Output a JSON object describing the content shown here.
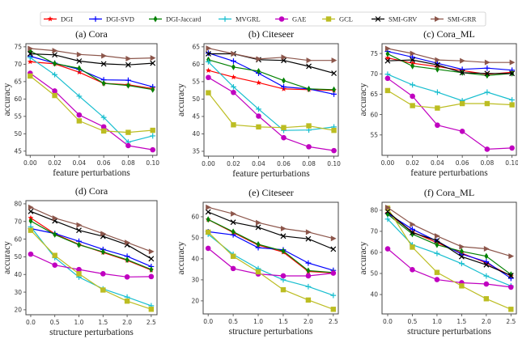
{
  "legend": {
    "placement": "top-center",
    "entries": [
      {
        "name": "DGI",
        "color": "#ff0000",
        "marker": "star"
      },
      {
        "name": "DGI-SVD",
        "color": "#0000ff",
        "marker": "plus"
      },
      {
        "name": "DGI-Jaccard",
        "color": "#008000",
        "marker": "thin-diamond"
      },
      {
        "name": "MVGRL",
        "color": "#17becf",
        "marker": "plus"
      },
      {
        "name": "GAE",
        "color": "#c000c0",
        "marker": "circle"
      },
      {
        "name": "GCL",
        "color": "#bcbd22",
        "marker": "square"
      },
      {
        "name": "SMI-GRV",
        "color": "#000000",
        "marker": "x"
      },
      {
        "name": "SMI-GRR",
        "color": "#8c564b",
        "marker": "triangle-right"
      }
    ]
  },
  "chart_data": [
    {
      "type": "line",
      "title": "(a) Cora",
      "xlabel": "feature perturbations",
      "ylabel": "accuracy",
      "x": [
        0,
        0.02,
        0.04,
        0.06,
        0.08,
        0.1
      ],
      "xticks": [
        "0.00",
        "0.02",
        "0.04",
        "0.06",
        "0.08",
        "0.10"
      ],
      "yticks": [
        45,
        50,
        55,
        60,
        65,
        70,
        75
      ],
      "xlim": [
        -0.0035,
        0.1035
      ],
      "ylim": [
        43.8,
        75.9
      ],
      "grid": false,
      "series": [
        {
          "name": "DGI",
          "values": [
            70.7,
            70.1,
            67.7,
            64.5,
            64.1,
            63.0
          ]
        },
        {
          "name": "DGI-SVD",
          "values": [
            72.3,
            70.3,
            68.5,
            65.5,
            65.4,
            63.5
          ]
        },
        {
          "name": "DGI-Jaccard",
          "values": [
            73.8,
            70.2,
            68.8,
            64.5,
            63.9,
            62.7
          ]
        },
        {
          "name": "MVGRL",
          "values": [
            71.9,
            67.0,
            60.8,
            54.7,
            47.6,
            49.4
          ]
        },
        {
          "name": "GAE",
          "values": [
            67.4,
            62.3,
            55.4,
            52.0,
            46.6,
            45.4
          ]
        },
        {
          "name": "GCL",
          "values": [
            66.6,
            61.0,
            53.7,
            50.8,
            50.4,
            51.0
          ]
        },
        {
          "name": "SMI-GRV",
          "values": [
            73.0,
            72.7,
            70.9,
            70.1,
            69.8,
            70.3
          ]
        },
        {
          "name": "SMI-GRR",
          "values": [
            74.5,
            73.9,
            72.8,
            72.4,
            71.6,
            71.8
          ]
        }
      ]
    },
    {
      "type": "line",
      "title": "(b) Citeseer",
      "xlabel": "feature perturbations",
      "ylabel": "accuracy",
      "x": [
        0,
        0.02,
        0.04,
        0.06,
        0.08,
        0.1
      ],
      "xticks": [
        "0.00",
        "0.02",
        "0.04",
        "0.06",
        "0.08",
        "0.10"
      ],
      "yticks": [
        35,
        40,
        45,
        50,
        55,
        60,
        65
      ],
      "xlim": [
        -0.0035,
        0.1035
      ],
      "ylim": [
        33.6,
        65.9
      ],
      "grid": false,
      "series": [
        {
          "name": "DGI",
          "values": [
            58.2,
            56.3,
            54.7,
            52.9,
            52.7,
            52.5
          ]
        },
        {
          "name": "DGI-SVD",
          "values": [
            63.2,
            60.9,
            57.4,
            53.5,
            52.9,
            51.4
          ]
        },
        {
          "name": "DGI-Jaccard",
          "values": [
            61.3,
            59.2,
            58.0,
            55.3,
            52.9,
            52.7
          ]
        },
        {
          "name": "MVGRL",
          "values": [
            60.7,
            53.5,
            47.1,
            41.0,
            41.1,
            42.0
          ]
        },
        {
          "name": "GAE",
          "values": [
            56.2,
            51.9,
            45.1,
            38.9,
            36.3,
            35.2
          ]
        },
        {
          "name": "GCL",
          "values": [
            51.8,
            42.6,
            42.0,
            41.8,
            42.3,
            41.0
          ]
        },
        {
          "name": "SMI-GRV",
          "values": [
            63.0,
            63.0,
            61.3,
            61.1,
            59.4,
            57.4
          ]
        },
        {
          "name": "SMI-GRR",
          "values": [
            64.6,
            63.0,
            61.5,
            62.0,
            61.1,
            61.1
          ]
        }
      ]
    },
    {
      "type": "line",
      "title": "(c) Cora_ML",
      "xlabel": "feature perturbations",
      "ylabel": "accuracy",
      "x": [
        0,
        0.02,
        0.04,
        0.06,
        0.08,
        0.1
      ],
      "xticks": [
        "0.00",
        "0.02",
        "0.04",
        "0.06",
        "0.08",
        "0.10"
      ],
      "yticks": [
        55,
        60,
        65,
        70,
        75
      ],
      "xlim": [
        -0.0045,
        0.1035
      ],
      "ylim": [
        50.0,
        77.4
      ],
      "grid": false,
      "series": [
        {
          "name": "DGI",
          "values": [
            73.9,
            72.6,
            71.8,
            70.8,
            69.9,
            70.4
          ]
        },
        {
          "name": "DGI-SVD",
          "values": [
            75.5,
            74.1,
            72.6,
            71.1,
            71.4,
            70.9
          ]
        },
        {
          "name": "DGI-Jaccard",
          "values": [
            74.9,
            71.9,
            71.1,
            70.3,
            69.6,
            70.1
          ]
        },
        {
          "name": "MVGRL",
          "values": [
            69.9,
            67.3,
            65.5,
            63.4,
            65.5,
            63.6
          ]
        },
        {
          "name": "GAE",
          "values": [
            68.9,
            64.5,
            57.4,
            55.9,
            51.5,
            51.8
          ]
        },
        {
          "name": "GCL",
          "values": [
            65.9,
            62.2,
            61.6,
            62.7,
            62.7,
            62.4
          ]
        },
        {
          "name": "SMI-GRV",
          "values": [
            73.2,
            73.4,
            72.2,
            70.3,
            70.1,
            70.1
          ]
        },
        {
          "name": "SMI-GRR",
          "values": [
            76.2,
            75.0,
            73.4,
            73.2,
            72.8,
            72.8
          ]
        }
      ]
    },
    {
      "type": "line",
      "title": "(d) Cora",
      "xlabel": "structure perturbations",
      "ylabel": "accuracy",
      "x": [
        0,
        0.5,
        1.0,
        1.5,
        2.0,
        2.5
      ],
      "xticks": [
        "0.0",
        "0.5",
        "1.0",
        "1.5",
        "2.0",
        "2.5"
      ],
      "yticks": [
        20,
        30,
        40,
        50,
        60,
        70,
        80
      ],
      "xlim": [
        -0.1,
        2.62
      ],
      "ylim": [
        17.2,
        81.8
      ],
      "grid": false,
      "series": [
        {
          "name": "DGI",
          "values": [
            72.0,
            63.0,
            57.0,
            52.5,
            48.0,
            42.5
          ]
        },
        {
          "name": "DGI-SVD",
          "values": [
            66.0,
            63.2,
            58.8,
            54.2,
            50.3,
            44.5
          ]
        },
        {
          "name": "DGI-Jaccard",
          "values": [
            70.3,
            62.6,
            56.8,
            52.8,
            48.3,
            42.8
          ]
        },
        {
          "name": "MVGRL",
          "values": [
            67.0,
            49.5,
            38.5,
            31.8,
            27.2,
            22.3
          ]
        },
        {
          "name": "GAE",
          "values": [
            51.5,
            45.3,
            42.8,
            40.4,
            38.6,
            38.8
          ]
        },
        {
          "name": "GCL",
          "values": [
            65.0,
            50.8,
            40.4,
            31.2,
            24.9,
            20.3
          ]
        },
        {
          "name": "SMI-GRV",
          "values": [
            75.7,
            70.3,
            65.0,
            61.6,
            56.8,
            48.9
          ]
        },
        {
          "name": "SMI-GRR",
          "values": [
            78.0,
            71.9,
            68.0,
            63.1,
            58.1,
            53.0
          ]
        }
      ]
    },
    {
      "type": "line",
      "title": "(e) Citeseer",
      "xlabel": "structure perturbations",
      "ylabel": "accuracy",
      "x": [
        0,
        0.5,
        1.0,
        1.5,
        2.0,
        2.5
      ],
      "xticks": [
        "0.0",
        "0.5",
        "1.0",
        "1.5",
        "2.0",
        "2.5"
      ],
      "yticks": [
        20,
        30,
        40,
        50,
        60
      ],
      "xlim": [
        -0.1,
        2.6
      ],
      "ylim": [
        13.8,
        66.9
      ],
      "grid": false,
      "series": [
        {
          "name": "DGI",
          "values": [
            58.7,
            52.5,
            46.5,
            43.2,
            34.0,
            33.3
          ]
        },
        {
          "name": "DGI-SVD",
          "values": [
            52.9,
            51.4,
            45.3,
            44.3,
            38.0,
            34.5
          ]
        },
        {
          "name": "DGI-Jaccard",
          "values": [
            58.7,
            52.9,
            46.9,
            43.7,
            34.4,
            33.5
          ]
        },
        {
          "name": "MVGRL",
          "values": [
            51.7,
            42.1,
            35.3,
            30.0,
            26.8,
            22.6
          ]
        },
        {
          "name": "GAE",
          "values": [
            45.0,
            35.4,
            32.8,
            31.9,
            31.9,
            33.2
          ]
        },
        {
          "name": "GCL",
          "values": [
            52.7,
            41.2,
            33.8,
            25.3,
            20.4,
            16.0
          ]
        },
        {
          "name": "SMI-GRV",
          "values": [
            62.3,
            57.4,
            55.0,
            50.8,
            49.5,
            44.6
          ]
        },
        {
          "name": "SMI-GRR",
          "values": [
            64.5,
            61.4,
            57.2,
            54.4,
            52.7,
            49.7
          ]
        }
      ]
    },
    {
      "type": "line",
      "title": "(f) Cora_ML",
      "xlabel": "structure perturbations",
      "ylabel": "accuracy",
      "x": [
        0,
        0.5,
        1.0,
        1.5,
        2.0,
        2.5
      ],
      "xticks": [
        "0.0",
        "0.5",
        "1.0",
        "1.5",
        "2.0",
        "2.5"
      ],
      "yticks": [
        40,
        50,
        60,
        70,
        80
      ],
      "xlim": [
        -0.115,
        2.61
      ],
      "ylim": [
        30.8,
        83.8
      ],
      "grid": false,
      "series": [
        {
          "name": "DGI",
          "values": [
            78.7,
            69.7,
            64.6,
            59.7,
            55.0,
            48.8
          ]
        },
        {
          "name": "DGI-SVD",
          "values": [
            78.5,
            71.0,
            65.3,
            59.2,
            55.6,
            47.7
          ]
        },
        {
          "name": "DGI-Jaccard",
          "values": [
            78.1,
            68.7,
            63.6,
            60.5,
            58.2,
            49.5
          ]
        },
        {
          "name": "MVGRL",
          "values": [
            75.8,
            63.6,
            59.5,
            54.7,
            48.8,
            44.1
          ]
        },
        {
          "name": "GAE",
          "values": [
            61.7,
            51.8,
            47.1,
            45.6,
            45.0,
            43.5
          ]
        },
        {
          "name": "GCL",
          "values": [
            81.0,
            62.5,
            50.5,
            44.1,
            38.0,
            33.0
          ]
        },
        {
          "name": "SMI-GRV",
          "values": [
            79.4,
            69.4,
            65.6,
            58.0,
            54.1,
            49.0
          ]
        },
        {
          "name": "SMI-GRR",
          "values": [
            81.3,
            73.3,
            67.8,
            62.7,
            61.7,
            58.2
          ]
        }
      ]
    }
  ]
}
